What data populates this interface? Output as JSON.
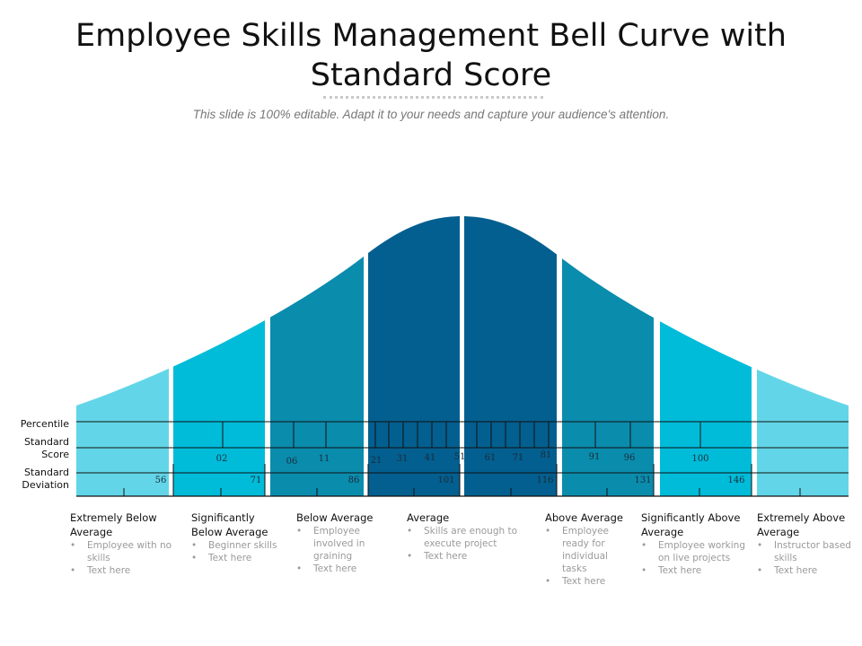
{
  "title": "Employee Skills Management Bell Curve with Standard Score",
  "subtitle": "This slide is 100% editable. Adapt it to your needs and capture your audience's attention.",
  "row_labels": {
    "percentile": "Percentile",
    "standard_score": "Standard Score",
    "standard_deviation": "Standard Deviation"
  },
  "colors": {
    "outer": "#62d6e8",
    "second": "#00bcd9",
    "third": "#0a8cad",
    "center": "#035f8f"
  },
  "standard_scores": [
    "02",
    "06",
    "11",
    "21",
    "31",
    "41",
    "51",
    "61",
    "71",
    "81",
    "91",
    "96",
    "100"
  ],
  "standard_deviations": [
    "56",
    "71",
    "86",
    "101",
    "116",
    "131",
    "146"
  ],
  "categories": [
    {
      "title": "Extremely Below Average",
      "bullets": [
        "Employee with no skills",
        "Text here"
      ]
    },
    {
      "title": "Significantly Below Average",
      "bullets": [
        "Beginner skills",
        "Text here"
      ]
    },
    {
      "title": "Below Average",
      "bullets": [
        "Employee involved in graining",
        "Text here"
      ]
    },
    {
      "title": "Average",
      "bullets": [
        "Skills are enough to execute project",
        "Text here"
      ]
    },
    {
      "title": "Above Average",
      "bullets": [
        "Employee ready for individual tasks",
        "Text here"
      ]
    },
    {
      "title": "Significantly Above Average",
      "bullets": [
        "Employee working on live projects",
        "Text here"
      ]
    },
    {
      "title": "Extremely Above Average",
      "bullets": [
        "Instructor based skills",
        "Text here"
      ]
    }
  ]
}
